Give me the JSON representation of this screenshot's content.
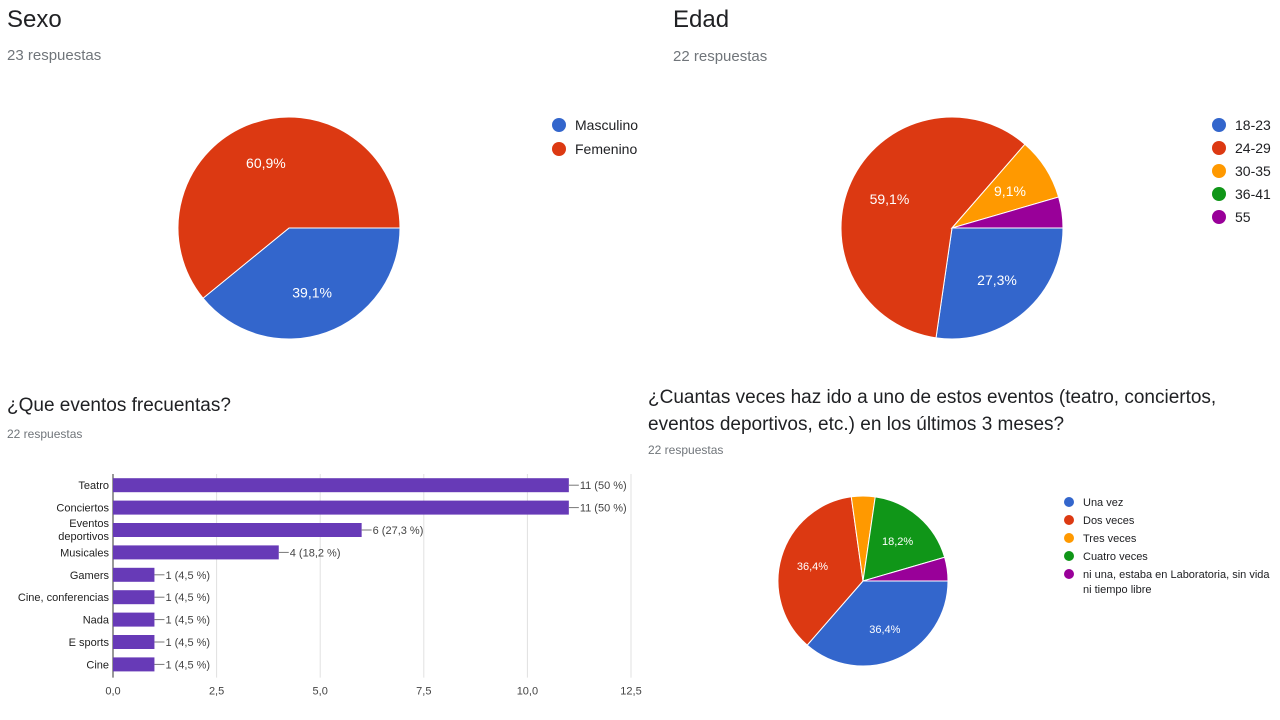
{
  "colors": {
    "blue": "#3366cc",
    "red": "#dc3912",
    "orange": "#ff9900",
    "green": "#109618",
    "purple": "#990099",
    "bar": "#673ab7"
  },
  "chart_data": [
    {
      "type": "pie",
      "title": "Sexo",
      "subtitle": "23 respuestas",
      "slices": [
        {
          "label": "Masculino",
          "value": 39.1,
          "display": "39,1%",
          "color": "#3366cc"
        },
        {
          "label": "Femenino",
          "value": 60.9,
          "display": "60,9%",
          "color": "#dc3912"
        }
      ],
      "legend": "right"
    },
    {
      "type": "pie",
      "title": "Edad",
      "subtitle": "22 respuestas",
      "slices": [
        {
          "label": "18-23",
          "value": 27.3,
          "display": "27,3%",
          "color": "#3366cc"
        },
        {
          "label": "24-29",
          "value": 59.1,
          "display": "59,1%",
          "color": "#dc3912"
        },
        {
          "label": "30-35",
          "value": 9.1,
          "display": "9,1%",
          "color": "#ff9900"
        },
        {
          "label": "36-41",
          "value": 0,
          "display": "",
          "color": "#109618"
        },
        {
          "label": "55",
          "value": 4.5,
          "display": "",
          "color": "#990099"
        }
      ],
      "legend": "right"
    },
    {
      "type": "bar",
      "orientation": "horizontal",
      "title": "¿Que eventos frecuentas?",
      "subtitle": "22 respuestas",
      "categories": [
        [
          "Teatro"
        ],
        [
          "Conciertos"
        ],
        [
          "Eventos",
          "deportivos"
        ],
        [
          "Musicales"
        ],
        [
          "Gamers"
        ],
        [
          "Cine, conferencias"
        ],
        [
          "Nada"
        ],
        [
          "E sports"
        ],
        [
          "Cine"
        ]
      ],
      "values": [
        11,
        11,
        6,
        4,
        1,
        1,
        1,
        1,
        1
      ],
      "value_labels": [
        "11 (50 %)",
        "11 (50 %)",
        "6 (27,3 %)",
        "4 (18,2 %)",
        "1 (4,5 %)",
        "1 (4,5 %)",
        "1 (4,5 %)",
        "1 (4,5 %)",
        "1 (4,5 %)"
      ],
      "xlim": [
        0,
        12.5
      ],
      "xticks": [
        0,
        2.5,
        5,
        7.5,
        10,
        12.5
      ],
      "xtick_labels": [
        "0,0",
        "2,5",
        "5,0",
        "7,5",
        "10,0",
        "12,5"
      ],
      "grid": true
    },
    {
      "type": "pie",
      "title": "¿Cuantas veces haz ido a uno de estos eventos (teatro, conciertos, eventos deportivos, etc.) en los últimos 3 meses?",
      "subtitle": "22 respuestas",
      "slices": [
        {
          "label": "Una vez",
          "value": 36.4,
          "display": "36,4%",
          "color": "#3366cc"
        },
        {
          "label": "Dos veces",
          "value": 36.4,
          "display": "36,4%",
          "color": "#dc3912"
        },
        {
          "label": "Tres veces",
          "value": 4.5,
          "display": "",
          "color": "#ff9900"
        },
        {
          "label": "Cuatro veces",
          "value": 18.2,
          "display": "18,2%",
          "color": "#109618"
        },
        {
          "label": "ni una, estaba en Laboratoria, sin vida ni tiempo libre",
          "value": 4.5,
          "display": "",
          "color": "#990099"
        }
      ],
      "legend": "right"
    }
  ]
}
